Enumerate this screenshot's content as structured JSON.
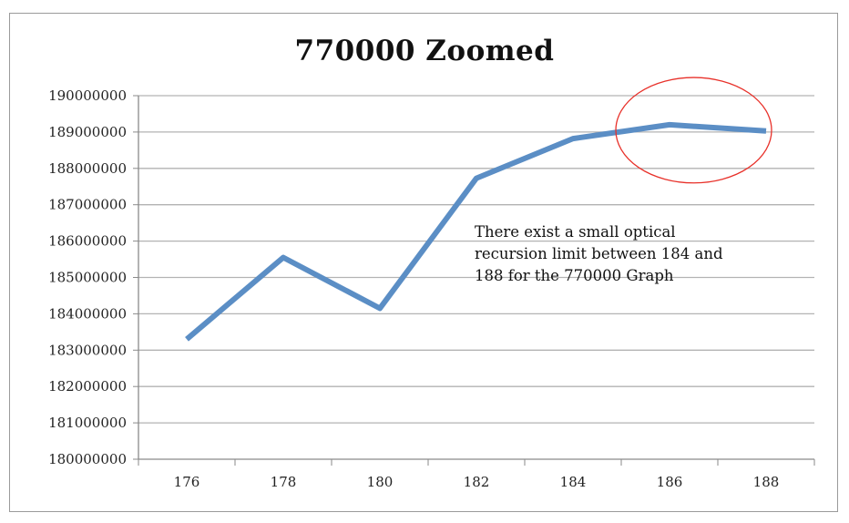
{
  "chart_data": {
    "type": "line",
    "title": "770000 Zoomed",
    "xlabel": "",
    "ylabel": "",
    "categories": [
      "176",
      "178",
      "180",
      "182",
      "184",
      "186",
      "188"
    ],
    "series": [
      {
        "values": [
          183300000,
          185550000,
          184150000,
          187730000,
          188820000,
          189200000,
          189030000
        ],
        "color": "#5b8ec5"
      }
    ],
    "ylim": [
      180000000,
      190000000
    ],
    "yticks": [
      "180000000",
      "181000000",
      "182000000",
      "183000000",
      "184000000",
      "185000000",
      "186000000",
      "187000000",
      "188000000",
      "189000000",
      "190000000"
    ],
    "grid": true,
    "legend": "none",
    "annotations": [
      {
        "text": "There exist a small optical\nrecursion limit between 184 and\n188 for the 770000 Graph"
      }
    ],
    "highlight_ellipse": {
      "color": "#e8312a",
      "x_range": [
        185,
        188
      ],
      "y_range": [
        187600000,
        190500000
      ]
    },
    "gridline_color": "#b3b3b3"
  }
}
